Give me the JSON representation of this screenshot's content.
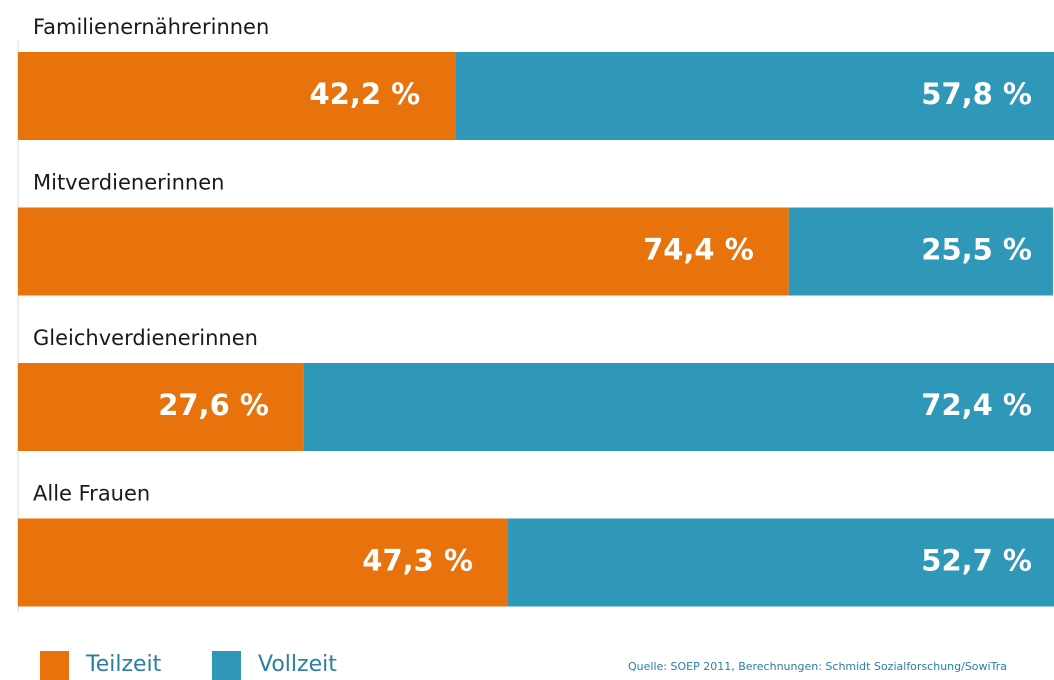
{
  "chart_data": {
    "type": "stacked-bar",
    "categories": [
      "Familienernährerinnen",
      "Mitverdienerinnen",
      "Gleichverdienerinnen",
      "Alle Frauen"
    ],
    "series": [
      {
        "name": "Teilzeit",
        "color": "#e8720c",
        "values": [
          42.2,
          74.4,
          27.6,
          47.3
        ],
        "value_labels": [
          "42,2 %",
          "74,4 %",
          "27,6 %",
          "47,3 %"
        ]
      },
      {
        "name": "Vollzeit",
        "color": "#2f97b7",
        "values": [
          57.8,
          25.5,
          72.4,
          52.7
        ],
        "value_labels": [
          "57,8 %",
          "25,5 %",
          "72,4 %",
          "52,7 %"
        ]
      }
    ],
    "xlim": [
      0,
      100
    ],
    "source": "Quelle: SOEP 2011, Berechnungen: Schmidt Sozialforschung/SowiTra"
  }
}
